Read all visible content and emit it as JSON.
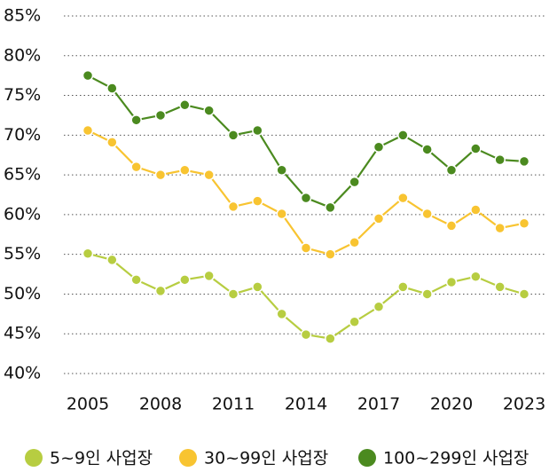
{
  "chart_data": {
    "type": "line",
    "x": [
      2005,
      2006,
      2007,
      2008,
      2009,
      2010,
      2011,
      2012,
      2013,
      2014,
      2015,
      2016,
      2017,
      2018,
      2019,
      2020,
      2021,
      2022,
      2023
    ],
    "xlim": [
      2005,
      2023
    ],
    "xticks": [
      2005,
      2008,
      2011,
      2014,
      2017,
      2020,
      2023
    ],
    "ylim": [
      40,
      85
    ],
    "yticks": [
      {
        "value": 40,
        "label": "40%"
      },
      {
        "value": 45,
        "label": "45%"
      },
      {
        "value": 50,
        "label": "50%"
      },
      {
        "value": 55,
        "label": "55%"
      },
      {
        "value": 60,
        "label": "60%"
      },
      {
        "value": 65,
        "label": "65%"
      },
      {
        "value": 70,
        "label": "70%"
      },
      {
        "value": 75,
        "label": "75%"
      },
      {
        "value": 80,
        "label": "80%"
      },
      {
        "value": 85,
        "label": "85%"
      }
    ],
    "grid": true,
    "legend": "bottom",
    "series": [
      {
        "name": "5~9인 사업장",
        "color": "#b7cd41",
        "values": [
          55.1,
          54.3,
          51.8,
          50.4,
          51.8,
          52.3,
          50.0,
          50.9,
          47.5,
          44.9,
          44.4,
          46.5,
          48.4,
          50.9,
          50.0,
          51.5,
          52.2,
          50.9,
          50.0
        ]
      },
      {
        "name": "30~99인 사업장",
        "color": "#f8c431",
        "values": [
          70.6,
          69.1,
          66.0,
          65.0,
          65.6,
          65.0,
          61.0,
          61.7,
          60.1,
          55.8,
          55.0,
          56.5,
          59.5,
          62.1,
          60.1,
          58.6,
          60.6,
          58.3,
          58.9
        ]
      },
      {
        "name": "100~299인 사업장",
        "color": "#4b8a1f",
        "values": [
          77.5,
          75.9,
          71.9,
          72.5,
          73.8,
          73.1,
          70.0,
          70.6,
          65.6,
          62.1,
          60.9,
          64.1,
          68.5,
          70.0,
          68.2,
          65.6,
          68.3,
          66.9,
          66.7
        ]
      }
    ]
  }
}
